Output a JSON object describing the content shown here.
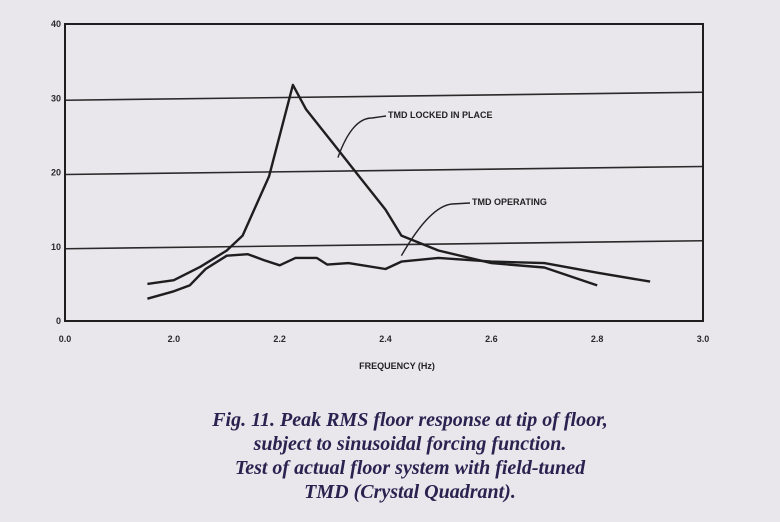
{
  "chart_data": {
    "type": "line",
    "xlabel": "FREQUENCY (Hz)",
    "ylabel": "",
    "xlim": [
      0.0,
      3.0
    ],
    "ylim": [
      0,
      40
    ],
    "x_ticks": [
      "0.0",
      "2.0",
      "2.2",
      "2.4",
      "2.6",
      "2.8",
      "3.0"
    ],
    "y_ticks": [
      "0",
      "10",
      "20",
      "30",
      "40"
    ],
    "grid": "horizontal",
    "series": [
      {
        "name": "TMD LOCKED IN PLACE",
        "points": [
          [
            1.95,
            5.0
          ],
          [
            2.0,
            5.5
          ],
          [
            2.05,
            7.3
          ],
          [
            2.1,
            9.5
          ],
          [
            2.13,
            11.5
          ],
          [
            2.18,
            19.5
          ],
          [
            2.225,
            31.8
          ],
          [
            2.25,
            28.5
          ],
          [
            2.3,
            24.0
          ],
          [
            2.35,
            19.5
          ],
          [
            2.4,
            15.0
          ],
          [
            2.43,
            11.5
          ],
          [
            2.5,
            9.5
          ],
          [
            2.6,
            7.8
          ],
          [
            2.7,
            7.2
          ],
          [
            2.8,
            4.8
          ]
        ]
      },
      {
        "name": "TMD OPERATING",
        "points": [
          [
            1.95,
            3.0
          ],
          [
            2.0,
            4.0
          ],
          [
            2.03,
            4.8
          ],
          [
            2.06,
            7.0
          ],
          [
            2.1,
            8.8
          ],
          [
            2.14,
            9.0
          ],
          [
            2.17,
            8.2
          ],
          [
            2.2,
            7.5
          ],
          [
            2.23,
            8.5
          ],
          [
            2.27,
            8.5
          ],
          [
            2.29,
            7.6
          ],
          [
            2.33,
            7.8
          ],
          [
            2.4,
            7.0
          ],
          [
            2.43,
            8.0
          ],
          [
            2.5,
            8.5
          ],
          [
            2.6,
            8.0
          ],
          [
            2.7,
            7.8
          ],
          [
            2.8,
            6.5
          ],
          [
            2.9,
            5.3
          ]
        ]
      }
    ],
    "annotations": [
      "TMD LOCKED IN PLACE",
      "TMD OPERATING"
    ],
    "caption": [
      "Fig. 11.  Peak RMS floor response at tip of floor,",
      "subject to sinusoidal forcing function.",
      "Test of actual floor system with field-tuned",
      "TMD (Crystal Quadrant)."
    ]
  },
  "colors": {
    "background": "#e9e6ec",
    "line": "#1e1e1e",
    "caption": "#2a2350"
  }
}
